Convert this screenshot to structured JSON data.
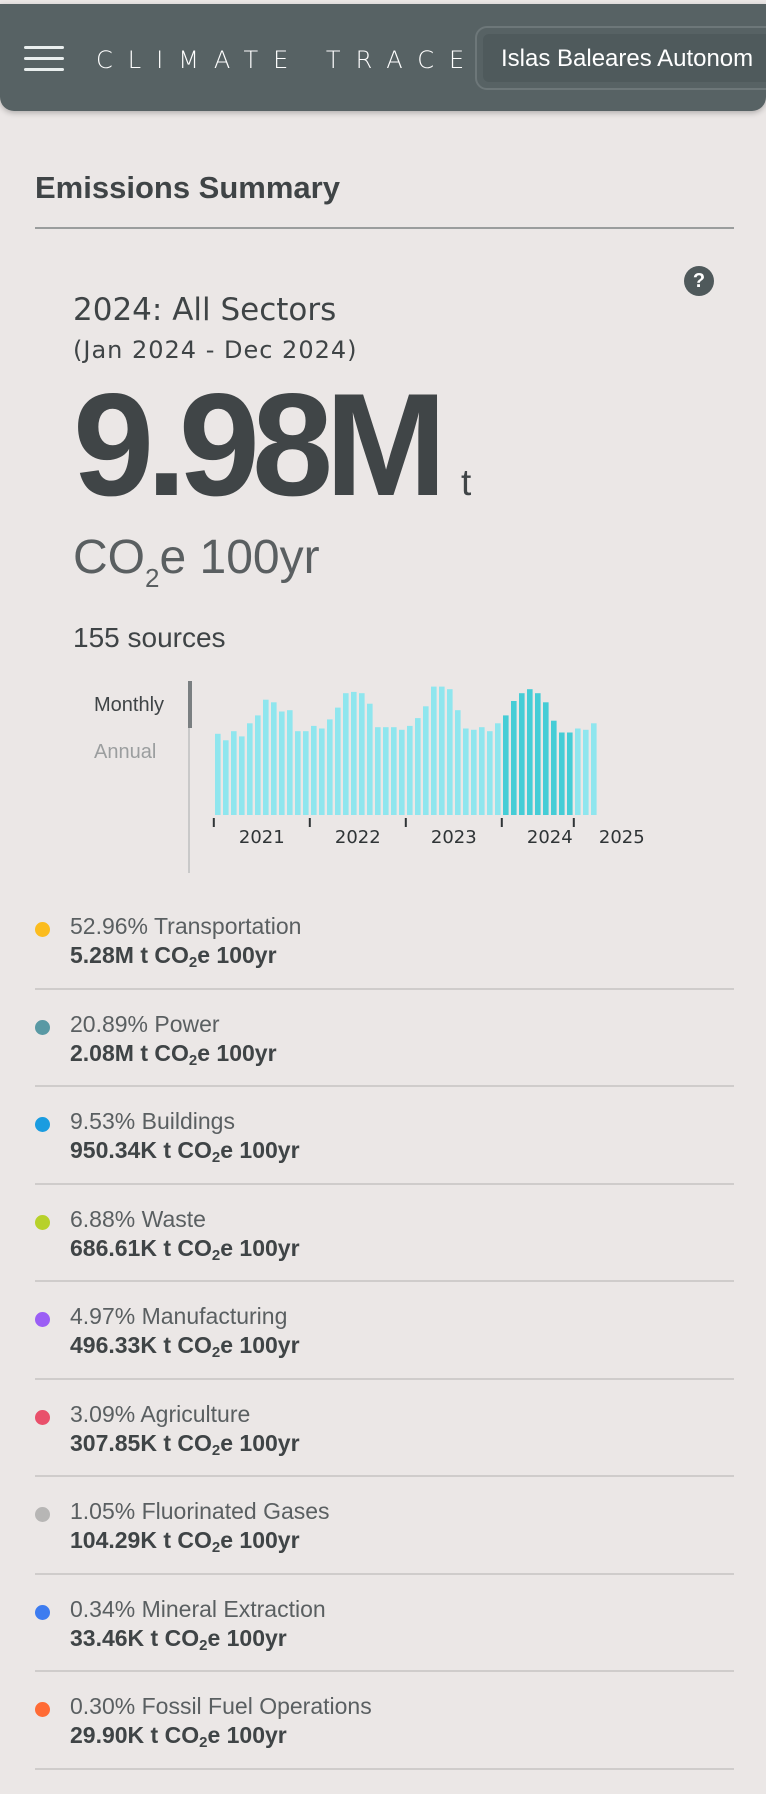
{
  "header": {
    "logo_text": "CLIMATE TRACE",
    "region_select_value": "Islas Baleares Autonom"
  },
  "summary": {
    "section_title": "Emissions Summary",
    "year_title": "2024: All Sectors",
    "date_range": "(Jan 2024 - Dec 2024)",
    "total_value": "9.98M",
    "total_unit": "t",
    "gas_prefix": "CO",
    "gas_subscript": "2",
    "gas_suffix": "e 100yr",
    "sources": "155 sources"
  },
  "toggle": {
    "monthly_label": "Monthly",
    "annual_label": "Annual",
    "active": "Monthly"
  },
  "chart_data": {
    "type": "bar",
    "x_ticks": [
      "2021",
      "2022",
      "2023",
      "2024",
      "2025"
    ],
    "highlight_year": "2024",
    "colors": {
      "default": "#8fe6ee",
      "highlight": "#45cdd6"
    },
    "series": [
      {
        "year": "2021",
        "values": [
          0.62,
          0.57,
          0.64,
          0.6,
          0.7,
          0.76,
          0.88,
          0.86,
          0.79,
          0.8,
          0.64,
          0.64
        ]
      },
      {
        "year": "2022",
        "values": [
          0.68,
          0.66,
          0.73,
          0.82,
          0.93,
          0.94,
          0.93,
          0.85,
          0.67,
          0.67,
          0.67,
          0.65
        ]
      },
      {
        "year": "2023",
        "values": [
          0.68,
          0.74,
          0.83,
          0.98,
          0.98,
          0.96,
          0.8,
          0.66,
          0.65,
          0.67,
          0.64,
          0.7
        ]
      },
      {
        "year": "2024",
        "values": [
          0.76,
          0.87,
          0.93,
          0.96,
          0.93,
          0.86,
          0.72,
          0.63,
          0.63
        ]
      },
      {
        "year": "2025",
        "values": [
          0.66,
          0.65,
          0.7
        ]
      }
    ]
  },
  "sectors": [
    {
      "name": "52.96% Transportation",
      "amount": "5.28M t CO",
      "sub": "2",
      "tail": "e 100yr",
      "color": "#fbbc1e"
    },
    {
      "name": "20.89% Power",
      "amount": "2.08M t CO",
      "sub": "2",
      "tail": "e 100yr",
      "color": "#5999a4"
    },
    {
      "name": "9.53% Buildings",
      "amount": "950.34K t CO",
      "sub": "2",
      "tail": "e 100yr",
      "color": "#1a9ce0"
    },
    {
      "name": "6.88% Waste",
      "amount": "686.61K t CO",
      "sub": "2",
      "tail": "e 100yr",
      "color": "#b7d12a"
    },
    {
      "name": "4.97% Manufacturing",
      "amount": "496.33K t CO",
      "sub": "2",
      "tail": "e 100yr",
      "color": "#9b5ef5"
    },
    {
      "name": "3.09% Agriculture",
      "amount": "307.85K t CO",
      "sub": "2",
      "tail": "e 100yr",
      "color": "#e9506b"
    },
    {
      "name": "1.05% Fluorinated Gases",
      "amount": "104.29K t CO",
      "sub": "2",
      "tail": "e 100yr",
      "color": "#b7b6b5"
    },
    {
      "name": "0.34% Mineral Extraction",
      "amount": "33.46K t CO",
      "sub": "2",
      "tail": "e 100yr",
      "color": "#3d7cf0"
    },
    {
      "name": "0.30% Fossil Fuel Operations",
      "amount": "29.90K t CO",
      "sub": "2",
      "tail": "e 100yr",
      "color": "#ff6b35"
    }
  ]
}
